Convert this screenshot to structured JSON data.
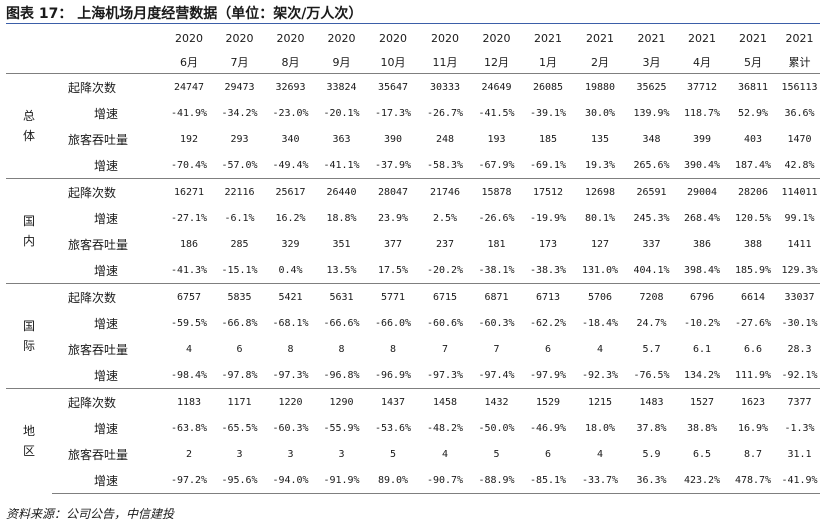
{
  "title": "图表 17：   上海机场月度经营数据（单位：架次/万人次）",
  "header": {
    "years": [
      "2020",
      "2020",
      "2020",
      "2020",
      "2020",
      "2020",
      "2020",
      "2021",
      "2021",
      "2021",
      "2021",
      "2021",
      "2021"
    ],
    "months": [
      "6月",
      "7月",
      "8月",
      "9月",
      "10月",
      "11月",
      "12月",
      "1月",
      "2月",
      "3月",
      "4月",
      "5月",
      "累计"
    ]
  },
  "groups": [
    {
      "category": "总\n体",
      "rows": [
        {
          "metric": "起降次数",
          "values": [
            "24747",
            "29473",
            "32693",
            "33824",
            "35647",
            "30333",
            "24649",
            "26085",
            "19880",
            "35625",
            "37712",
            "36811",
            "156113"
          ]
        },
        {
          "metric": "增速",
          "values": [
            "-41.9%",
            "-34.2%",
            "-23.0%",
            "-20.1%",
            "-17.3%",
            "-26.7%",
            "-41.5%",
            "-39.1%",
            "30.0%",
            "139.9%",
            "118.7%",
            "52.9%",
            "36.6%"
          ]
        },
        {
          "metric": "旅客吞吐量",
          "values": [
            "192",
            "293",
            "340",
            "363",
            "390",
            "248",
            "193",
            "185",
            "135",
            "348",
            "399",
            "403",
            "1470"
          ]
        },
        {
          "metric": "增速",
          "values": [
            "-70.4%",
            "-57.0%",
            "-49.4%",
            "-41.1%",
            "-37.9%",
            "-58.3%",
            "-67.9%",
            "-69.1%",
            "19.3%",
            "265.6%",
            "390.4%",
            "187.4%",
            "42.8%"
          ]
        }
      ]
    },
    {
      "category": "国\n内",
      "rows": [
        {
          "metric": "起降次数",
          "values": [
            "16271",
            "22116",
            "25617",
            "26440",
            "28047",
            "21746",
            "15878",
            "17512",
            "12698",
            "26591",
            "29004",
            "28206",
            "114011"
          ]
        },
        {
          "metric": "增速",
          "values": [
            "-27.1%",
            "-6.1%",
            "16.2%",
            "18.8%",
            "23.9%",
            "2.5%",
            "-26.6%",
            "-19.9%",
            "80.1%",
            "245.3%",
            "268.4%",
            "120.5%",
            "99.1%"
          ]
        },
        {
          "metric": "旅客吞吐量",
          "values": [
            "186",
            "285",
            "329",
            "351",
            "377",
            "237",
            "181",
            "173",
            "127",
            "337",
            "386",
            "388",
            "1411"
          ]
        },
        {
          "metric": "增速",
          "values": [
            "-41.3%",
            "-15.1%",
            "0.4%",
            "13.5%",
            "17.5%",
            "-20.2%",
            "-38.1%",
            "-38.3%",
            "131.0%",
            "404.1%",
            "398.4%",
            "185.9%",
            "129.3%"
          ]
        }
      ]
    },
    {
      "category": "国\n际",
      "rows": [
        {
          "metric": "起降次数",
          "values": [
            "6757",
            "5835",
            "5421",
            "5631",
            "5771",
            "6715",
            "6871",
            "6713",
            "5706",
            "7208",
            "6796",
            "6614",
            "33037"
          ]
        },
        {
          "metric": "增速",
          "values": [
            "-59.5%",
            "-66.8%",
            "-68.1%",
            "-66.6%",
            "-66.0%",
            "-60.6%",
            "-60.3%",
            "-62.2%",
            "-18.4%",
            "24.7%",
            "-10.2%",
            "-27.6%",
            "-30.1%"
          ]
        },
        {
          "metric": "旅客吞吐量",
          "values": [
            "4",
            "6",
            "8",
            "8",
            "8",
            "7",
            "7",
            "6",
            "4",
            "5.7",
            "6.1",
            "6.6",
            "28.3"
          ]
        },
        {
          "metric": "增速",
          "values": [
            "-98.4%",
            "-97.8%",
            "-97.3%",
            "-96.8%",
            "-96.9%",
            "-97.3%",
            "-97.4%",
            "-97.9%",
            "-92.3%",
            "-76.5%",
            "134.2%",
            "111.9%",
            "-92.1%"
          ]
        }
      ]
    },
    {
      "category": "地\n区",
      "rows": [
        {
          "metric": "起降次数",
          "values": [
            "1183",
            "1171",
            "1220",
            "1290",
            "1437",
            "1458",
            "1432",
            "1529",
            "1215",
            "1483",
            "1527",
            "1623",
            "7377"
          ]
        },
        {
          "metric": "增速",
          "values": [
            "-63.8%",
            "-65.5%",
            "-60.3%",
            "-55.9%",
            "-53.6%",
            "-48.2%",
            "-50.0%",
            "-46.9%",
            "18.0%",
            "37.8%",
            "38.8%",
            "16.9%",
            "-1.3%"
          ]
        },
        {
          "metric": "旅客吞吐量",
          "values": [
            "2",
            "3",
            "3",
            "3",
            "5",
            "4",
            "5",
            "6",
            "4",
            "5.9",
            "6.5",
            "8.7",
            "31.1"
          ]
        },
        {
          "metric": "增速",
          "values": [
            "-97.2%",
            "-95.6%",
            "-94.0%",
            "-91.9%",
            "89.0%",
            "-90.7%",
            "-88.9%",
            "-85.1%",
            "-33.7%",
            "36.3%",
            "423.2%",
            "478.7%",
            "-41.9%"
          ]
        }
      ]
    }
  ],
  "source": "资料来源：公司公告，中信建投"
}
